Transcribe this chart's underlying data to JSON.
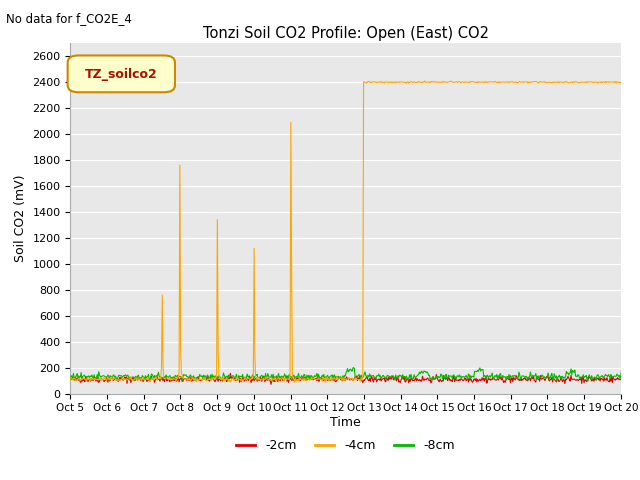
{
  "title": "Tonzi Soil CO2 Profile: Open (East) CO2",
  "subtitle": "No data for f_CO2E_4",
  "ylabel": "Soil CO2 (mV)",
  "xlabel": "Time",
  "legend_label": "TZ_soilco2",
  "ylim": [
    0,
    2700
  ],
  "bg_color": "#e8e8e8",
  "line_colors": {
    "neg2cm": "#dd0000",
    "neg4cm": "#ffa500",
    "neg8cm": "#00bb00"
  },
  "xtick_labels": [
    "Oct 5",
    "Oct 6",
    "Oct 7",
    "Oct 8",
    "Oct 9",
    "Oct 10",
    "Oct 11",
    "Oct 12",
    "Oct 13",
    "Oct 14",
    "Oct 15",
    "Oct 16",
    "Oct 17",
    "Oct 18",
    "Oct 19",
    "Oct 20"
  ],
  "ytick_labels": [
    0,
    200,
    400,
    600,
    800,
    1000,
    1200,
    1400,
    1600,
    1800,
    2000,
    2200,
    2400,
    2600
  ],
  "legend_entries": [
    "-2cm",
    "-4cm",
    "-8cm"
  ],
  "figsize": [
    6.4,
    4.8
  ],
  "dpi": 100
}
